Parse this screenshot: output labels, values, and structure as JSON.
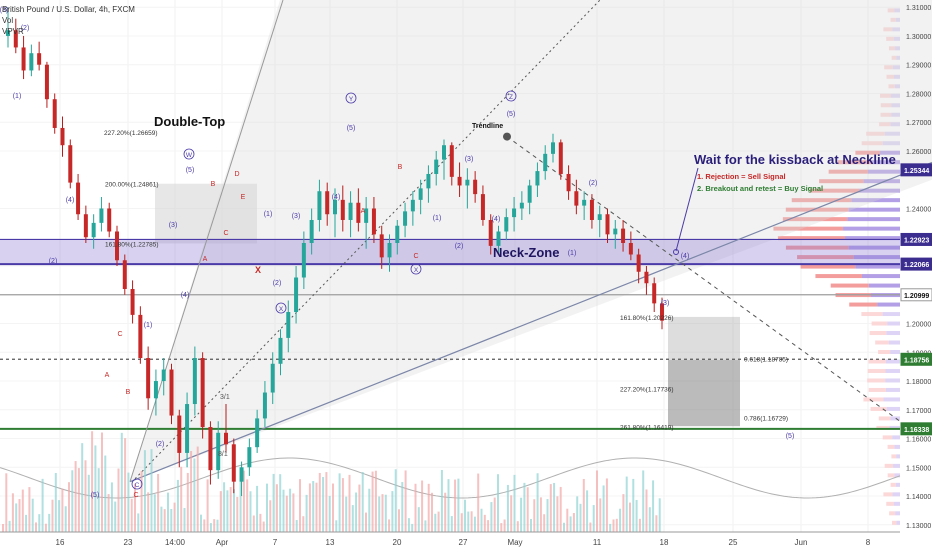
{
  "header": {
    "symbol_line": "British Pound / U.S. Dollar, 4h, FXCM",
    "vol_label": "Vol",
    "vpvr_label": "VPVR"
  },
  "chart_data": {
    "type": "candlestick",
    "title": "British Pound / U.S. Dollar, 4h, FXCM",
    "ylim": [
      1.1275,
      1.3125
    ],
    "x_ticks": [
      "16",
      "23",
      "14:00",
      "Apr",
      "7",
      "13",
      "20",
      "27",
      "May",
      "11",
      "18",
      "25",
      "Jun",
      "8"
    ],
    "price_axis_ticks": [
      "1.31000",
      "1.30000",
      "1.29000",
      "1.28000",
      "1.27000",
      "1.26000",
      "1.24000",
      "1.22000",
      "1.21000",
      "1.20000",
      "1.19000",
      "1.18000",
      "1.17000",
      "1.16000",
      "1.15000",
      "1.14000",
      "1.13000"
    ],
    "price_markers": [
      {
        "label": "1.25344",
        "value": 1.25344,
        "color": "#3b2c8f"
      },
      {
        "label": "1.22923",
        "value": 1.22923,
        "color": "#3b2c8f"
      },
      {
        "label": "1.22066",
        "value": 1.22066,
        "color": "#3b2c8f"
      },
      {
        "label": "1.20999",
        "value": 1.20999,
        "color": "#ffffff"
      },
      {
        "label": "1.18756",
        "value": 1.18756,
        "color": "#2e7d32"
      },
      {
        "label": "1.16338",
        "value": 1.16338,
        "color": "#2e7d32"
      }
    ],
    "horizontal_levels": [
      {
        "value": 1.22923,
        "style": "zone-top",
        "color": "#4a3aa8"
      },
      {
        "value": 1.22066,
        "style": "solid",
        "color": "#4a3aa8"
      },
      {
        "value": 1.20999,
        "style": "solid",
        "color": "#9e9e9e"
      },
      {
        "value": 1.18756,
        "style": "dashed",
        "color": "#555555"
      },
      {
        "value": 1.16338,
        "style": "solid",
        "color": "#2e7d32"
      }
    ],
    "fib_labels": [
      {
        "text": "227.20%(1.26659)",
        "value": 1.26659
      },
      {
        "text": "200.00%(1.24861)",
        "value": 1.24861
      },
      {
        "text": "161.80%(1.22785)",
        "value": 1.22785
      },
      {
        "text": "161.80%(1.20226)",
        "value": 1.20226
      },
      {
        "text": "0.618(1.18785)",
        "value": 1.18785
      },
      {
        "text": "227.20%(1.17736)",
        "value": 1.17736
      },
      {
        "text": "0.786(1.16729)",
        "value": 1.16729
      },
      {
        "text": "261.80%(1.16419)",
        "value": 1.16419
      }
    ],
    "annotations": {
      "double_top": "Double-Top",
      "neck_zone": "Neck-Zone",
      "trendline": "Trendline",
      "headline": "Wait for the kissback at Neckline",
      "rule1": "1. Rejection = Sell Signal",
      "rule2": "2. Breakout and retest = Buy Signal",
      "x_mark": "X",
      "small_ratio_1": "3/1",
      "small_ratio_2": "8/1"
    },
    "wave_labels": [
      "(1)",
      "(2)",
      "(3)",
      "(4)",
      "(5)",
      "A",
      "B",
      "C",
      "D",
      "E",
      "W",
      "X",
      "Y",
      "Z"
    ],
    "candles": [
      {
        "o": 1.3,
        "h": 1.31,
        "l": 1.296,
        "c": 1.302
      },
      {
        "o": 1.302,
        "h": 1.306,
        "l": 1.294,
        "c": 1.296
      },
      {
        "o": 1.296,
        "h": 1.3,
        "l": 1.285,
        "c": 1.288
      },
      {
        "o": 1.288,
        "h": 1.297,
        "l": 1.286,
        "c": 1.294
      },
      {
        "o": 1.294,
        "h": 1.298,
        "l": 1.288,
        "c": 1.29
      },
      {
        "o": 1.29,
        "h": 1.291,
        "l": 1.275,
        "c": 1.278
      },
      {
        "o": 1.278,
        "h": 1.28,
        "l": 1.266,
        "c": 1.268
      },
      {
        "o": 1.268,
        "h": 1.272,
        "l": 1.258,
        "c": 1.262
      },
      {
        "o": 1.262,
        "h": 1.264,
        "l": 1.247,
        "c": 1.249
      },
      {
        "o": 1.249,
        "h": 1.252,
        "l": 1.236,
        "c": 1.238
      },
      {
        "o": 1.238,
        "h": 1.241,
        "l": 1.228,
        "c": 1.23
      },
      {
        "o": 1.23,
        "h": 1.238,
        "l": 1.226,
        "c": 1.235
      },
      {
        "o": 1.235,
        "h": 1.244,
        "l": 1.232,
        "c": 1.24
      },
      {
        "o": 1.24,
        "h": 1.242,
        "l": 1.23,
        "c": 1.232
      },
      {
        "o": 1.232,
        "h": 1.234,
        "l": 1.22,
        "c": 1.222
      },
      {
        "o": 1.222,
        "h": 1.224,
        "l": 1.21,
        "c": 1.212
      },
      {
        "o": 1.212,
        "h": 1.215,
        "l": 1.2,
        "c": 1.203
      },
      {
        "o": 1.203,
        "h": 1.206,
        "l": 1.186,
        "c": 1.188
      },
      {
        "o": 1.188,
        "h": 1.192,
        "l": 1.17,
        "c": 1.174
      },
      {
        "o": 1.174,
        "h": 1.184,
        "l": 1.168,
        "c": 1.18
      },
      {
        "o": 1.18,
        "h": 1.188,
        "l": 1.175,
        "c": 1.184
      },
      {
        "o": 1.184,
        "h": 1.186,
        "l": 1.165,
        "c": 1.168
      },
      {
        "o": 1.168,
        "h": 1.17,
        "l": 1.15,
        "c": 1.155
      },
      {
        "o": 1.155,
        "h": 1.176,
        "l": 1.15,
        "c": 1.172
      },
      {
        "o": 1.172,
        "h": 1.192,
        "l": 1.168,
        "c": 1.188
      },
      {
        "o": 1.188,
        "h": 1.19,
        "l": 1.16,
        "c": 1.164
      },
      {
        "o": 1.164,
        "h": 1.166,
        "l": 1.144,
        "c": 1.149
      },
      {
        "o": 1.149,
        "h": 1.166,
        "l": 1.146,
        "c": 1.162
      },
      {
        "o": 1.162,
        "h": 1.172,
        "l": 1.155,
        "c": 1.158
      },
      {
        "o": 1.158,
        "h": 1.16,
        "l": 1.141,
        "c": 1.145
      },
      {
        "o": 1.145,
        "h": 1.152,
        "l": 1.14,
        "c": 1.15
      },
      {
        "o": 1.15,
        "h": 1.16,
        "l": 1.147,
        "c": 1.157
      },
      {
        "o": 1.157,
        "h": 1.17,
        "l": 1.155,
        "c": 1.167
      },
      {
        "o": 1.167,
        "h": 1.18,
        "l": 1.164,
        "c": 1.176
      },
      {
        "o": 1.176,
        "h": 1.19,
        "l": 1.172,
        "c": 1.186
      },
      {
        "o": 1.186,
        "h": 1.198,
        "l": 1.182,
        "c": 1.195
      },
      {
        "o": 1.195,
        "h": 1.208,
        "l": 1.19,
        "c": 1.204
      },
      {
        "o": 1.204,
        "h": 1.22,
        "l": 1.2,
        "c": 1.216
      },
      {
        "o": 1.216,
        "h": 1.232,
        "l": 1.212,
        "c": 1.228
      },
      {
        "o": 1.228,
        "h": 1.24,
        "l": 1.224,
        "c": 1.236
      },
      {
        "o": 1.236,
        "h": 1.25,
        "l": 1.232,
        "c": 1.246
      },
      {
        "o": 1.246,
        "h": 1.249,
        "l": 1.234,
        "c": 1.238
      },
      {
        "o": 1.238,
        "h": 1.247,
        "l": 1.23,
        "c": 1.243
      },
      {
        "o": 1.243,
        "h": 1.248,
        "l": 1.232,
        "c": 1.236
      },
      {
        "o": 1.236,
        "h": 1.246,
        "l": 1.23,
        "c": 1.242
      },
      {
        "o": 1.242,
        "h": 1.247,
        "l": 1.232,
        "c": 1.235
      },
      {
        "o": 1.235,
        "h": 1.244,
        "l": 1.226,
        "c": 1.24
      },
      {
        "o": 1.24,
        "h": 1.244,
        "l": 1.228,
        "c": 1.231
      },
      {
        "o": 1.231,
        "h": 1.234,
        "l": 1.219,
        "c": 1.223
      },
      {
        "o": 1.223,
        "h": 1.231,
        "l": 1.218,
        "c": 1.228
      },
      {
        "o": 1.228,
        "h": 1.236,
        "l": 1.224,
        "c": 1.234
      },
      {
        "o": 1.234,
        "h": 1.242,
        "l": 1.23,
        "c": 1.239
      },
      {
        "o": 1.239,
        "h": 1.246,
        "l": 1.234,
        "c": 1.243
      },
      {
        "o": 1.243,
        "h": 1.25,
        "l": 1.238,
        "c": 1.247
      },
      {
        "o": 1.247,
        "h": 1.255,
        "l": 1.242,
        "c": 1.252
      },
      {
        "o": 1.252,
        "h": 1.26,
        "l": 1.248,
        "c": 1.257
      },
      {
        "o": 1.257,
        "h": 1.264,
        "l": 1.25,
        "c": 1.262
      },
      {
        "o": 1.262,
        "h": 1.263,
        "l": 1.248,
        "c": 1.251
      },
      {
        "o": 1.251,
        "h": 1.256,
        "l": 1.244,
        "c": 1.248
      },
      {
        "o": 1.248,
        "h": 1.254,
        "l": 1.24,
        "c": 1.25
      },
      {
        "o": 1.25,
        "h": 1.253,
        "l": 1.242,
        "c": 1.245
      },
      {
        "o": 1.245,
        "h": 1.248,
        "l": 1.234,
        "c": 1.236
      },
      {
        "o": 1.236,
        "h": 1.238,
        "l": 1.224,
        "c": 1.227
      },
      {
        "o": 1.227,
        "h": 1.234,
        "l": 1.224,
        "c": 1.232
      },
      {
        "o": 1.232,
        "h": 1.24,
        "l": 1.229,
        "c": 1.237
      },
      {
        "o": 1.237,
        "h": 1.244,
        "l": 1.232,
        "c": 1.24
      },
      {
        "o": 1.24,
        "h": 1.246,
        "l": 1.236,
        "c": 1.242
      },
      {
        "o": 1.242,
        "h": 1.25,
        "l": 1.238,
        "c": 1.248
      },
      {
        "o": 1.248,
        "h": 1.256,
        "l": 1.244,
        "c": 1.253
      },
      {
        "o": 1.253,
        "h": 1.262,
        "l": 1.25,
        "c": 1.259
      },
      {
        "o": 1.259,
        "h": 1.266,
        "l": 1.256,
        "c": 1.263
      },
      {
        "o": 1.263,
        "h": 1.264,
        "l": 1.25,
        "c": 1.252
      },
      {
        "o": 1.252,
        "h": 1.255,
        "l": 1.243,
        "c": 1.246
      },
      {
        "o": 1.246,
        "h": 1.25,
        "l": 1.238,
        "c": 1.241
      },
      {
        "o": 1.241,
        "h": 1.246,
        "l": 1.236,
        "c": 1.243
      },
      {
        "o": 1.243,
        "h": 1.245,
        "l": 1.233,
        "c": 1.236
      },
      {
        "o": 1.236,
        "h": 1.241,
        "l": 1.23,
        "c": 1.238
      },
      {
        "o": 1.238,
        "h": 1.24,
        "l": 1.228,
        "c": 1.231
      },
      {
        "o": 1.231,
        "h": 1.236,
        "l": 1.226,
        "c": 1.233
      },
      {
        "o": 1.233,
        "h": 1.236,
        "l": 1.225,
        "c": 1.228
      },
      {
        "o": 1.228,
        "h": 1.232,
        "l": 1.222,
        "c": 1.224
      },
      {
        "o": 1.224,
        "h": 1.226,
        "l": 1.214,
        "c": 1.218
      },
      {
        "o": 1.218,
        "h": 1.22,
        "l": 1.21,
        "c": 1.214
      },
      {
        "o": 1.214,
        "h": 1.216,
        "l": 1.204,
        "c": 1.207
      },
      {
        "o": 1.207,
        "h": 1.209,
        "l": 1.198,
        "c": 1.201
      }
    ],
    "volume_profile_note": "VPVR histogram on right side with value area highlighted in purple"
  }
}
